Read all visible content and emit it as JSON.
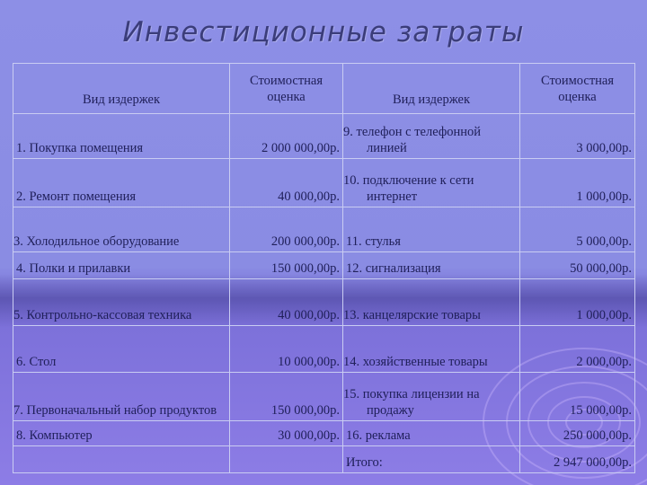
{
  "title": "Инвестиционные затраты",
  "headers": {
    "type1": "Вид издержек",
    "value1": "Стоимостная оценка",
    "type2": "Вид издержек",
    "value2": "Стоимостная оценка"
  },
  "rows": [
    {
      "left_label": "1. Покупка помещения",
      "left_value": "2 000 000,00р.",
      "right_label": "9. телефон с телефонной линией",
      "right_value": "3 000,00р."
    },
    {
      "left_label": "2. Ремонт помещения",
      "left_value": "40 000,00р.",
      "right_label": "10. подключение к сети интернет",
      "right_value": "1 000,00р."
    },
    {
      "left_label": "3. Холодильное оборудование",
      "left_value": "200 000,00р.",
      "right_label": "11. стулья",
      "right_value": "5 000,00р."
    },
    {
      "left_label": "4. Полки и прилавки",
      "left_value": "150 000,00р.",
      "right_label": "12. сигнализация",
      "right_value": "50 000,00р."
    },
    {
      "left_label": "5. Контрольно-кассовая техника",
      "left_value": "40 000,00р.",
      "right_label": "13. канцелярские товары",
      "right_value": "1 000,00р."
    },
    {
      "left_label": "6. Стол",
      "left_value": "10 000,00р.",
      "right_label": "14. хозяйственные товары",
      "right_value": "2 000,00р."
    },
    {
      "left_label": "7. Первоначальный набор продуктов",
      "left_value": "150 000,00р.",
      "right_label": "15. покупка лицензии на продажу",
      "right_value": "15 000,00р."
    },
    {
      "left_label": "8. Компьютер",
      "left_value": "30 000,00р.",
      "right_label": "16. реклама",
      "right_value": "250 000,00р."
    }
  ],
  "total": {
    "label": "Итого:",
    "value": "2 947 000,00р."
  }
}
